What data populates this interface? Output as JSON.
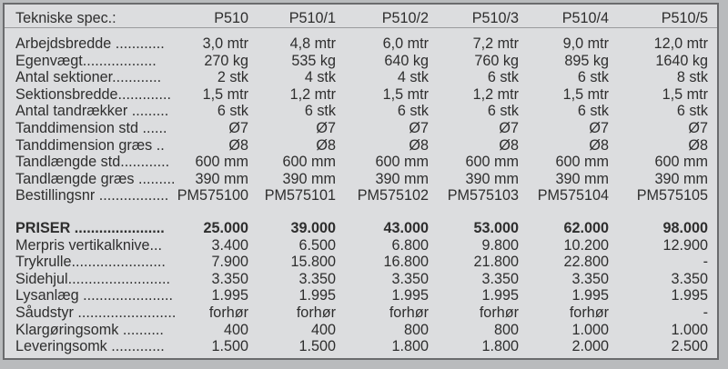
{
  "header": {
    "label": "Tekniske spec.:",
    "models": [
      "P510",
      "P510/1",
      "P510/2",
      "P510/3",
      "P510/4",
      "P510/5"
    ]
  },
  "specs": [
    {
      "label": "Arbejdsbredde ............",
      "values": [
        "3,0 mtr",
        "4,8 mtr",
        "6,0 mtr",
        "7,2 mtr",
        "9,0 mtr",
        "12,0 mtr"
      ]
    },
    {
      "label": "Egenvægt..................",
      "values": [
        "270 kg",
        "535 kg",
        "640 kg",
        "760 kg",
        "895 kg",
        "1640 kg"
      ]
    },
    {
      "label": "Antal sektioner............",
      "values": [
        "2 stk",
        "4 stk",
        "4 stk",
        "6 stk",
        "6 stk",
        "8 stk"
      ]
    },
    {
      "label": "Sektionsbredde.............",
      "values": [
        "1,5 mtr",
        "1,2 mtr",
        "1,5 mtr",
        "1,2 mtr",
        "1,5 mtr",
        "1,5 mtr"
      ]
    },
    {
      "label": "Antal tandrækker .........",
      "values": [
        "6 stk",
        "6 stk",
        "6 stk",
        "6 stk",
        "6 stk",
        "6 stk"
      ]
    },
    {
      "label": "Tanddimension std ......",
      "values": [
        "Ø7",
        "Ø7",
        "Ø7",
        "Ø7",
        "Ø7",
        "Ø7"
      ]
    },
    {
      "label": "Tanddimension græs ..",
      "values": [
        "Ø8",
        "Ø8",
        "Ø8",
        "Ø8",
        "Ø8",
        "Ø8"
      ]
    },
    {
      "label": "Tandlængde std............",
      "values": [
        "600 mm",
        "600 mm",
        "600 mm",
        "600 mm",
        "600 mm",
        "600 mm"
      ]
    },
    {
      "label": "Tandlængde græs .........",
      "values": [
        "390 mm",
        "390 mm",
        "390 mm",
        "390 mm",
        "390 mm",
        "390 mm"
      ]
    },
    {
      "label": "Bestillingsnr .................",
      "values": [
        "PM575100",
        "PM575101",
        "PM575102",
        "PM575103",
        "PM575104",
        "PM575105"
      ]
    }
  ],
  "prices": [
    {
      "label": "PRISER ......................",
      "values": [
        "25.000",
        "39.000",
        "43.000",
        "53.000",
        "62.000",
        "98.000"
      ],
      "bold": true
    },
    {
      "label": "Merpris vertikalknive...",
      "values": [
        "3.400",
        "6.500",
        "6.800",
        "9.800",
        "10.200",
        "12.900"
      ]
    },
    {
      "label": "Trykrulle.......................",
      "values": [
        "7.900",
        "15.800",
        "16.800",
        "21.800",
        "22.800",
        "-"
      ]
    },
    {
      "label": "Sidehjul.........................",
      "values": [
        "3.350",
        "3.350",
        "3.350",
        "3.350",
        "3.350",
        "3.350"
      ]
    },
    {
      "label": "Lysanlæg ......................",
      "values": [
        "1.995",
        "1.995",
        "1.995",
        "1.995",
        "1.995",
        "1.995"
      ]
    },
    {
      "label": "Såudstyr ........................",
      "values": [
        "forhør",
        "forhør",
        "forhør",
        "forhør",
        "forhør",
        "-"
      ]
    },
    {
      "label": "Klargøringsomk ..........",
      "values": [
        "400",
        "400",
        "800",
        "800",
        "1.000",
        "1.000"
      ]
    },
    {
      "label": "Leveringsomk .............",
      "values": [
        "1.500",
        "1.500",
        "1.800",
        "1.800",
        "2.000",
        "2.500"
      ]
    }
  ]
}
